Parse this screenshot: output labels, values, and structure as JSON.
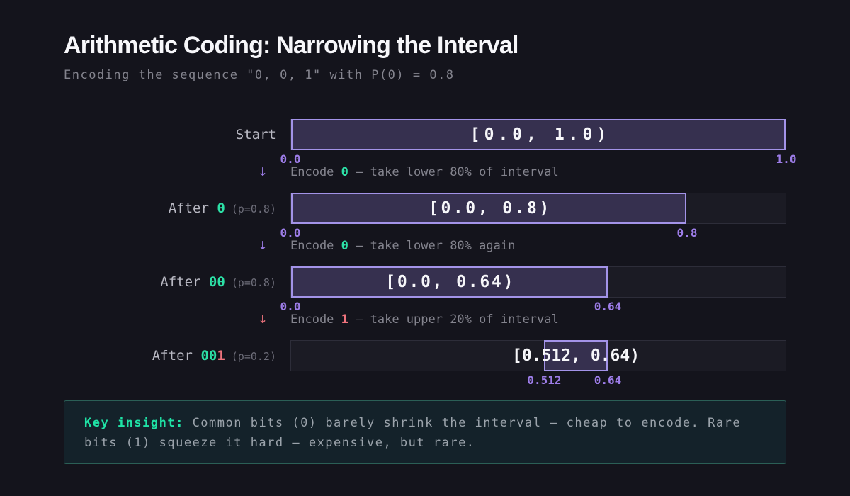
{
  "header": {
    "title": "Arithmetic Coding: Narrowing the Interval",
    "subtitle": "Encoding the sequence \"0, 0, 1\" with P(0) = 0.8"
  },
  "colors": {
    "bg": "#14141c",
    "accent": "#a393e8",
    "purple-text": "#9d7de8",
    "interval-fill": "#36304f",
    "green": "#2ce0a6",
    "red": "#ef737d",
    "insight-green": "#1fe3a6",
    "insight-border": "#2b5f56"
  },
  "rows": [
    {
      "label_prefix": "Start",
      "bits_green": "",
      "bits_red": "",
      "prob": "",
      "interval_text": "[0.0, 1.0)",
      "start": 0,
      "end": 1,
      "start_label": "0.0",
      "end_label": "1.0"
    },
    {
      "label_prefix": "After ",
      "bits_green": "0",
      "bits_red": "",
      "prob": "(p=0.8)",
      "interval_text": "[0.0, 0.8)",
      "start": 0,
      "end": 0.8,
      "start_label": "0.0",
      "end_label": "0.8"
    },
    {
      "label_prefix": "After ",
      "bits_green": "00",
      "bits_red": "",
      "prob": "(p=0.8)",
      "interval_text": "[0.0, 0.64)",
      "start": 0,
      "end": 0.64,
      "start_label": "0.0",
      "end_label": "0.64"
    },
    {
      "label_prefix": "After ",
      "bits_green": "00",
      "bits_red": "1",
      "prob": "(p=0.2)",
      "interval_text": "[0.512, 0.64)",
      "start": 0.512,
      "end": 0.64,
      "start_label": "0.512",
      "end_label": "0.64"
    }
  ],
  "transitions": [
    {
      "arrow": "↓",
      "arrow_color": "purple",
      "pre": "Encode ",
      "bit": "0",
      "bit_color": "green",
      "post": " — take lower 80% of interval"
    },
    {
      "arrow": "↓",
      "arrow_color": "purple",
      "pre": "Encode ",
      "bit": "0",
      "bit_color": "green",
      "post": " — take lower 80% again"
    },
    {
      "arrow": "↓",
      "arrow_color": "red",
      "pre": "Encode ",
      "bit": "1",
      "bit_color": "red",
      "post": " — take upper 20% of interval"
    }
  ],
  "insight": {
    "label": "Key insight:",
    "text": " Common bits (0) barely shrink the interval — cheap to encode. Rare bits (1) squeeze it hard — expensive, but rare."
  }
}
